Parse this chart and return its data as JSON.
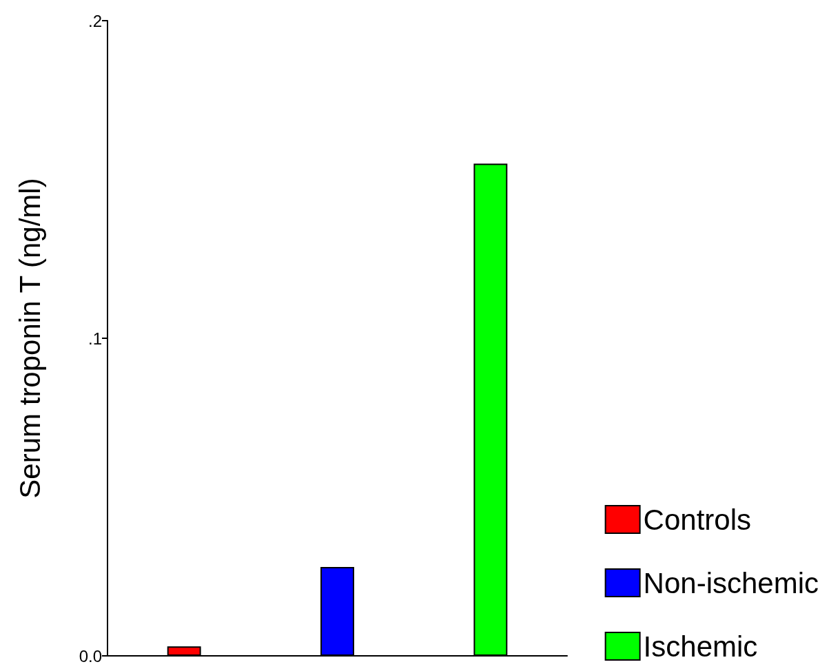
{
  "chart_data": {
    "type": "bar",
    "ylabel": "Serum troponin T (ng/ml)",
    "categories": [
      null,
      null,
      null
    ],
    "series": [
      {
        "name": "Controls",
        "color": "#ff0000",
        "values": [
          0.003,
          null,
          null
        ]
      },
      {
        "name": "Non-ischemic",
        "color": "#0000ff",
        "values": [
          null,
          0.028,
          null
        ]
      },
      {
        "name": "Ischemic",
        "color": "#00ff00",
        "values": [
          null,
          null,
          0.155
        ]
      }
    ],
    "ylim": [
      0,
      0.2
    ],
    "yticks": [
      {
        "value": 0,
        "label": "0.0"
      },
      {
        "value": 0.1,
        "label": ".1"
      },
      {
        "value": 0.2,
        "label": ".2"
      }
    ],
    "grid": false,
    "tick_labels": "y",
    "legend": "bottom right"
  }
}
